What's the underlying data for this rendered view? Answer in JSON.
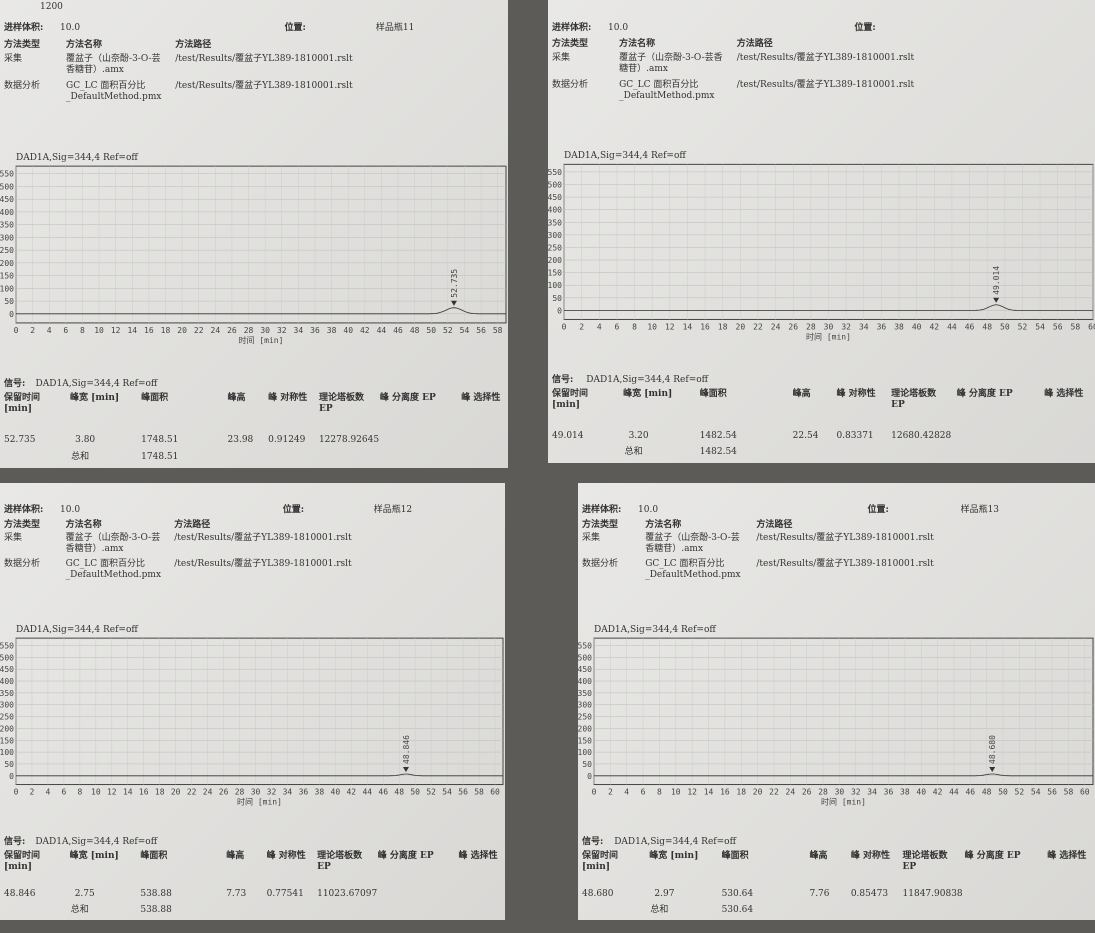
{
  "panels": [
    {
      "top_value": "1200",
      "volume_label": "进样体积:",
      "volume": "10.0",
      "position_label": "位置:",
      "position": "样品瓶11",
      "methods": {
        "header": [
          "方法类型",
          "方法名称",
          "方法路径"
        ],
        "rows": [
          [
            "采集",
            "覆盆子（山奈酚-3-O-芸香糖苷）.amx",
            "/test/Results/覆盆子YL389-1810001.rslt"
          ],
          [
            "数据分析",
            "GC_LC 面积百分比_DefaultMethod.pmx",
            "/test/Results/覆盆子YL389-1810001.rslt"
          ]
        ]
      },
      "chart": {
        "signal": "DAD1A,Sig=344,4  Ref=off",
        "x_label": "时间 [min]",
        "xlim": [
          0,
          59
        ],
        "xticks": [
          0,
          2,
          4,
          6,
          8,
          10,
          12,
          14,
          16,
          18,
          20,
          22,
          24,
          26,
          28,
          30,
          32,
          34,
          36,
          38,
          40,
          42,
          44,
          46,
          48,
          50,
          52,
          54,
          56,
          58
        ],
        "ylim": [
          -20,
          560
        ],
        "yticks": [
          0,
          50,
          100,
          150,
          200,
          250,
          300,
          350,
          400,
          450,
          500,
          550
        ]
      },
      "table": {
        "signal_label": "信号:",
        "signal": "DAD1A,Sig=344,4  Ref=off",
        "header": [
          "保留时间 [min]",
          "峰宽 [min]",
          "峰面积",
          "峰高",
          "峰 对称性",
          "理论塔板数 EP",
          "峰 分离度 EP",
          "峰 选择性"
        ],
        "rows": [
          [
            "52.735",
            "3.80",
            "1748.51",
            "23.98",
            "0.91249",
            "12278.92645"
          ]
        ],
        "total_label": "总和",
        "total": "1748.51"
      }
    },
    {
      "volume_label": "进样体积:",
      "volume": "10.0",
      "position_label": "位置:",
      "methods": {
        "header": [
          "方法类型",
          "方法名称",
          "方法路径"
        ],
        "rows": [
          [
            "采集",
            "覆盆子（山奈酚-3-O-芸香糖苷）.amx",
            "/test/Results/覆盆子YL389-1810001.rslt"
          ],
          [
            "数据分析",
            "GC_LC 面积百分比_DefaultMethod.pmx",
            "/test/Results/覆盆子YL389-1810001.rslt"
          ]
        ]
      },
      "chart": {
        "signal": "DAD1A,Sig=344,4  Ref=off",
        "x_label": "时间 [min]",
        "xlim": [
          0,
          60
        ],
        "xticks": [
          0,
          2,
          4,
          6,
          8,
          10,
          12,
          14,
          16,
          18,
          20,
          22,
          24,
          26,
          28,
          30,
          32,
          34,
          36,
          38,
          40,
          42,
          44,
          46,
          48,
          50,
          52,
          54,
          56,
          58,
          60
        ],
        "ylim": [
          -20,
          560
        ],
        "yticks": [
          0,
          50,
          100,
          150,
          200,
          250,
          300,
          350,
          400,
          450,
          500,
          550
        ]
      },
      "table": {
        "signal_label": "信号:",
        "signal": "DAD1A,Sig=344,4  Ref=off",
        "header": [
          "保留时间 [min]",
          "峰宽 [min]",
          "峰面积",
          "峰高",
          "峰 对称性",
          "理论塔板数 EP",
          "峰 分离度 EP",
          "峰 选择性"
        ],
        "rows": [
          [
            "49.014",
            "3.20",
            "1482.54",
            "22.54",
            "0.83371",
            "12680.42828"
          ]
        ],
        "total_label": "总和",
        "total": "1482.54"
      }
    },
    {
      "volume_label": "进样体积:",
      "volume": "10.0",
      "position_label": "位置:",
      "position": "样品瓶12",
      "methods": {
        "header": [
          "方法类型",
          "方法名称",
          "方法路径"
        ],
        "rows": [
          [
            "采集",
            "覆盆子（山奈酚-3-O-芸香糖苷）.amx",
            "/test/Results/覆盆子YL389-1810001.rslt"
          ],
          [
            "数据分析",
            "GC_LC 面积百分比_DefaultMethod.pmx",
            "/test/Results/覆盆子YL389-1810001.rslt"
          ]
        ]
      },
      "chart": {
        "signal": "DAD1A,Sig=344,4  Ref=off",
        "x_label": "时间 [min]",
        "xlim": [
          0,
          61
        ],
        "xticks": [
          0,
          2,
          4,
          6,
          8,
          10,
          12,
          14,
          16,
          18,
          20,
          22,
          24,
          26,
          28,
          30,
          32,
          34,
          36,
          38,
          40,
          42,
          44,
          46,
          48,
          50,
          52,
          54,
          56,
          58,
          60
        ],
        "ylim": [
          -20,
          560
        ],
        "yticks": [
          0,
          50,
          100,
          150,
          200,
          250,
          300,
          350,
          400,
          450,
          500,
          550
        ]
      },
      "table": {
        "signal_label": "信号:",
        "signal": "DAD1A,Sig=344,4  Ref=off",
        "header": [
          "保留时间 [min]",
          "峰宽 [min]",
          "峰面积",
          "峰高",
          "峰 对称性",
          "理论塔板数 EP",
          "峰 分离度 EP",
          "峰 选择性"
        ],
        "rows": [
          [
            "48.846",
            "2.75",
            "538.88",
            "7.73",
            "0.77541",
            "11023.67097"
          ]
        ],
        "total_label": "总和",
        "total": "538.88"
      }
    },
    {
      "volume_label": "进样体积:",
      "volume": "10.0",
      "position_label": "位置:",
      "position": "样品瓶13",
      "methods": {
        "header": [
          "方法类型",
          "方法名称",
          "方法路径"
        ],
        "rows": [
          [
            "采集",
            "覆盆子（山奈酚-3-O-芸香糖苷）.amx",
            "/test/Results/覆盆子YL389-1810001.rslt"
          ],
          [
            "数据分析",
            "GC_LC 面积百分比_DefaultMethod.pmx",
            "/test/Results/覆盆子YL389-1810001.rslt"
          ]
        ]
      },
      "chart": {
        "signal": "DAD1A,Sig=344,4  Ref=off",
        "x_label": "时间 [min]",
        "xlim": [
          0,
          61
        ],
        "xticks": [
          0,
          2,
          4,
          6,
          8,
          10,
          12,
          14,
          16,
          18,
          20,
          22,
          24,
          26,
          28,
          30,
          32,
          34,
          36,
          38,
          40,
          42,
          44,
          46,
          48,
          50,
          52,
          54,
          56,
          58,
          60
        ],
        "ylim": [
          -20,
          560
        ],
        "yticks": [
          0,
          50,
          100,
          150,
          200,
          250,
          300,
          350,
          400,
          450,
          500,
          550
        ]
      },
      "table": {
        "signal_label": "信号:",
        "signal": "DAD1A,Sig=344,4  Ref=off",
        "header": [
          "保留时间 [min]",
          "峰宽 [min]",
          "峰面积",
          "峰高",
          "峰 对称性",
          "理论塔板数 EP",
          "峰 分离度 EP",
          "峰 选择性"
        ],
        "rows": [
          [
            "48.680",
            "2.97",
            "530.64",
            "7.76",
            "0.85473",
            "11847.90838"
          ]
        ],
        "total_label": "总和",
        "total": "530.64"
      }
    }
  ]
}
